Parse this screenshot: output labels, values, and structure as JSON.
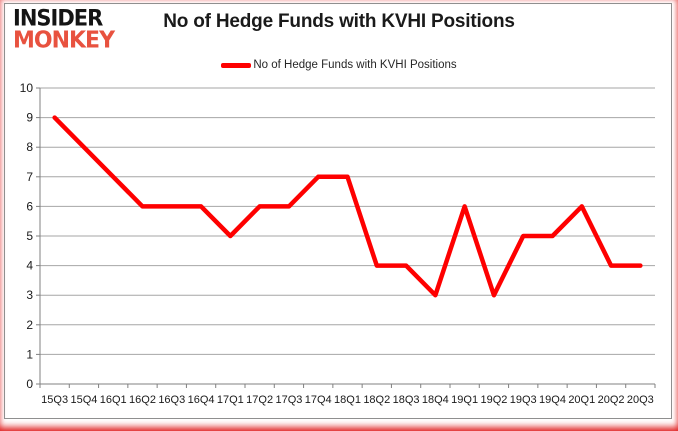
{
  "logo": {
    "line1": "INSIDER",
    "line2": "MONKEY"
  },
  "header": {
    "title": "No of Hedge Funds with KVHI Positions"
  },
  "legend": {
    "label": "No of Hedge Funds with KVHI Positions"
  },
  "chart_data": {
    "type": "line",
    "title": "No of Hedge Funds with KVHI Positions",
    "categories": [
      "15Q3",
      "15Q4",
      "16Q1",
      "16Q2",
      "16Q3",
      "16Q4",
      "17Q1",
      "17Q2",
      "17Q3",
      "17Q4",
      "18Q1",
      "18Q2",
      "18Q3",
      "18Q4",
      "19Q1",
      "19Q2",
      "19Q3",
      "19Q4",
      "20Q1",
      "20Q2",
      "20Q3"
    ],
    "series": [
      {
        "name": "No of Hedge Funds with KVHI Positions",
        "color": "#fe0000",
        "values": [
          9,
          8,
          7,
          6,
          6,
          6,
          5,
          6,
          6,
          7,
          7,
          4,
          4,
          3,
          6,
          3,
          5,
          5,
          6,
          4,
          4
        ]
      }
    ],
    "xlabel": "",
    "ylabel": "",
    "ylim": [
      0,
      10
    ],
    "ytick_step": 1,
    "yticks": [
      0,
      1,
      2,
      3,
      4,
      5,
      6,
      7,
      8,
      9,
      10
    ],
    "grid": true,
    "legend_position": "top",
    "gridline_color": "#a6a6a6",
    "axis_color": "#808080",
    "tick_label_color": "#1a1a1a"
  }
}
